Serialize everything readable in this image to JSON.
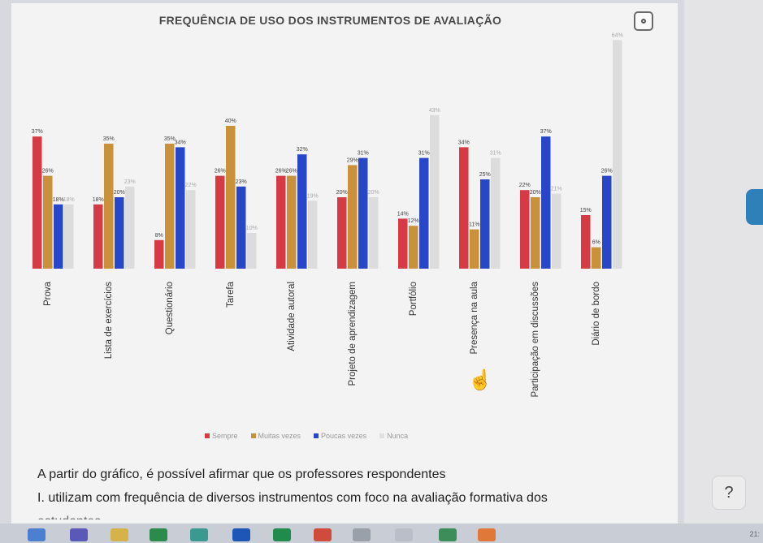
{
  "chart_data": {
    "type": "bar",
    "title": "FREQUÊNCIA DE USO DOS INSTRUMENTOS DE AVALIAÇÃO",
    "categories": [
      "Prova",
      "Lista de exercícios",
      "Questionário",
      "Tarefa",
      "Atividade autoral",
      "Projeto de aprendizagem",
      "Portfólio",
      "Presença na aula",
      "Participação em discussões",
      "Diário de bordo"
    ],
    "series": [
      {
        "name": "Sempre",
        "color": "#d63a45",
        "values": [
          37,
          18,
          8,
          26,
          26,
          20,
          14,
          34,
          22,
          15
        ]
      },
      {
        "name": "Muitas vezes",
        "color": "#c8913a",
        "values": [
          26,
          35,
          35,
          40,
          26,
          29,
          12,
          11,
          20,
          6
        ]
      },
      {
        "name": "Poucas vezes",
        "color": "#2847c8",
        "values": [
          18,
          20,
          34,
          23,
          32,
          31,
          31,
          25,
          37,
          26
        ]
      },
      {
        "name": "Nunca",
        "color": "#c9c9c9",
        "values": [
          18,
          23,
          22,
          10,
          19,
          20,
          43,
          31,
          21,
          64
        ]
      }
    ],
    "ylim": [
      0,
      70
    ],
    "grid": false,
    "legend_position": "bottom"
  },
  "legend": {
    "items": [
      {
        "label": "Sempre",
        "color": "#d63a45"
      },
      {
        "label": "Muitas vezes",
        "color": "#c8913a"
      },
      {
        "label": "Poucas vezes",
        "color": "#2847c8"
      },
      {
        "label": "Nunca",
        "color": "#e0e0e0"
      }
    ]
  },
  "question": {
    "intro": "A partir do gráfico, é possível afirmar que os professores respondentes",
    "item1": "I. utilizam com frequência de diversos instrumentos com foco na avaliação formativa dos",
    "item1_continued": "estudantes"
  },
  "help_button": {
    "label": "?"
  },
  "taskbar": {
    "time": "21:"
  }
}
